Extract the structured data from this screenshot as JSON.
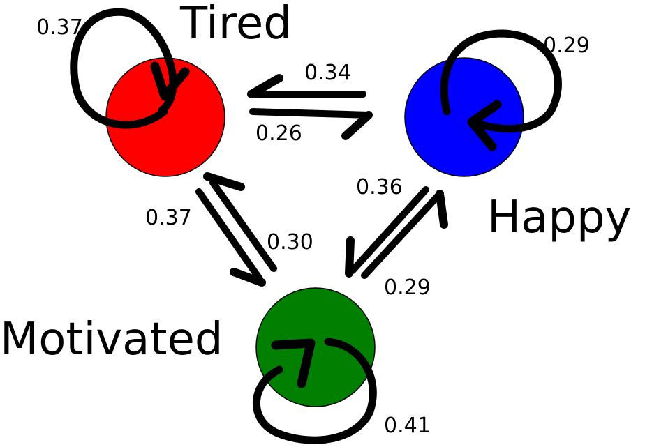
{
  "states": {
    "tired": {
      "label": "Tired",
      "color": "#ff0000"
    },
    "happy": {
      "label": "Happy",
      "color": "#0000ff"
    },
    "motivated": {
      "label": "Motivated",
      "color": "#007f00"
    }
  },
  "transitions": {
    "tired_self": "0.37",
    "happy_to_tired": "0.34",
    "tired_to_happy": "0.26",
    "happy_self": "0.29",
    "tired_to_motivated": "0.37",
    "motivated_to_tired": "0.30",
    "motivated_to_happy": "0.36",
    "happy_to_motivated": "0.29",
    "motivated_self": "0.41"
  }
}
